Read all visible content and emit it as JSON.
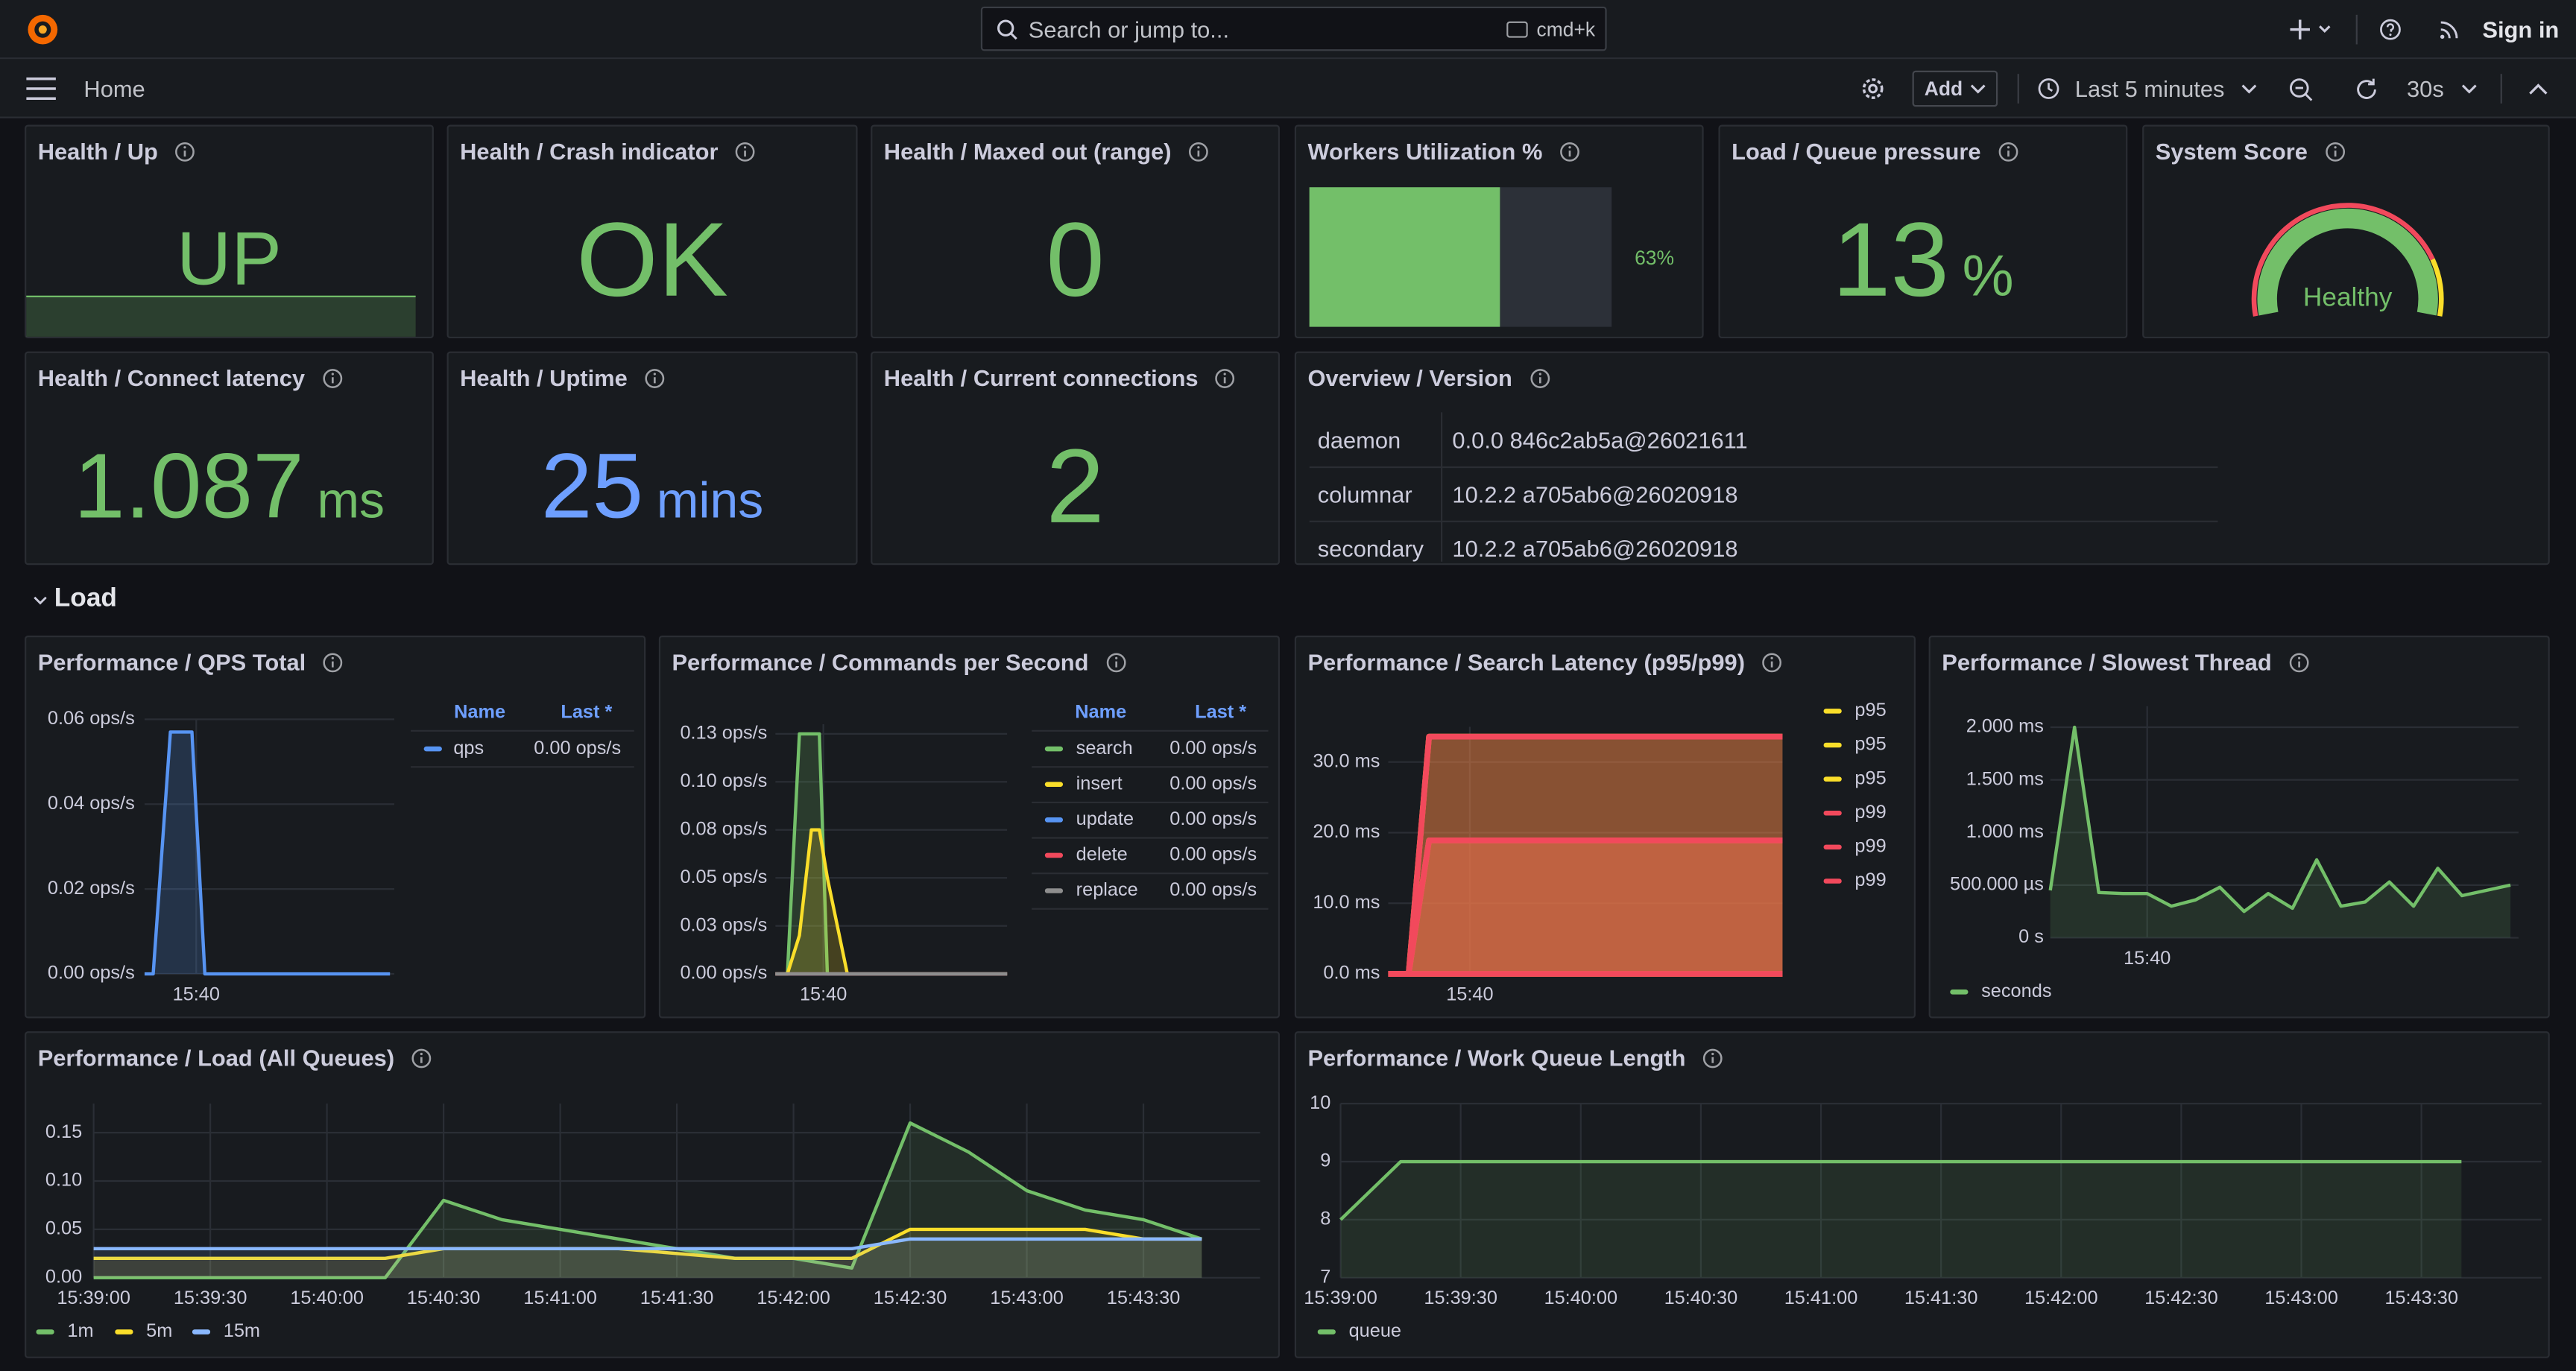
{
  "topbar": {
    "search_placeholder": "Search or jump to...",
    "shortcut": "cmd+k",
    "sign_in": "Sign in"
  },
  "toolbar": {
    "breadcrumb": "Home",
    "add": "Add",
    "time_range": "Last 5 minutes",
    "refresh_interval": "30s"
  },
  "stat_panels": [
    {
      "title": "Health / Up",
      "kind": "stat",
      "value": "UP",
      "color": "#73bf69"
    },
    {
      "title": "Health / Crash indicator",
      "kind": "stat",
      "value": "OK",
      "color": "#73bf69"
    },
    {
      "title": "Health / Maxed out (range)",
      "kind": "stat",
      "value": 0,
      "color": "#73bf69"
    },
    {
      "title": "Workers Utilization %",
      "kind": "bargauge",
      "value": 63,
      "value_label": "63%",
      "max": 100,
      "color": "#73bf69"
    },
    {
      "title": "Load / Queue pressure",
      "kind": "stat",
      "value": 13,
      "unit": "%",
      "color": "#73bf69"
    },
    {
      "title": "System Score",
      "kind": "gauge",
      "value": "Healthy",
      "color": "#73bf69"
    },
    {
      "title": "Health / Connect latency",
      "kind": "stat",
      "value": 1.087,
      "unit": "ms",
      "color": "#73bf69"
    },
    {
      "title": "Health / Uptime",
      "kind": "stat",
      "value": 25,
      "unit": "mins",
      "color": "#6e9fff"
    },
    {
      "title": "Health / Current connections",
      "kind": "stat",
      "value": 2,
      "color": "#73bf69"
    }
  ],
  "version_table": {
    "title": "Overview / Version",
    "rows": [
      [
        "daemon",
        "0.0.0 846c2ab5a@26021611"
      ],
      [
        "columnar",
        "10.2.2 a705ab6@26020918"
      ],
      [
        "secondary",
        "10.2.2 a705ab6@26020918"
      ]
    ]
  },
  "row_title": "Load",
  "chart_data": [
    {
      "type": "line",
      "title": "Performance / QPS Total",
      "grid": true,
      "fill_opacity": 0.2,
      "xlim": [
        "15:39:00",
        "15:43:50"
      ],
      "xticks": [
        "15:40"
      ],
      "ylim": [
        0,
        0.06
      ],
      "yticks": [
        {
          "value": 0,
          "label": "0.00 ops/s"
        },
        {
          "value": 0.02,
          "label": "0.02 ops/s"
        },
        {
          "value": 0.04,
          "label": "0.04 ops/s"
        },
        {
          "value": 0.06,
          "label": "0.06 ops/s"
        }
      ],
      "x": [
        "15:39:00",
        "15:39:10",
        "15:39:30",
        "15:39:55",
        "15:40:10",
        "15:43:45"
      ],
      "legend": {
        "mode": "table",
        "columns": [
          "Name",
          "Last *"
        ]
      },
      "series": [
        {
          "name": "qps",
          "color": "#5794f2",
          "last": "0.00 ops/s",
          "values": [
            0,
            0,
            0.057,
            0.057,
            0,
            0
          ]
        }
      ]
    },
    {
      "type": "line",
      "title": "Performance / Commands per Second",
      "grid": true,
      "fill_opacity": 0.2,
      "xlim": [
        "15:39:00",
        "15:43:50"
      ],
      "xticks": [
        "15:40"
      ],
      "ylim": [
        0,
        0.13
      ],
      "yticks": [
        {
          "value": 0,
          "label": "0.00 ops/s"
        },
        {
          "value": 0.025,
          "label": "0.03 ops/s"
        },
        {
          "value": 0.05,
          "label": "0.05 ops/s"
        },
        {
          "value": 0.075,
          "label": "0.08 ops/s"
        },
        {
          "value": 0.1,
          "label": "0.10 ops/s"
        },
        {
          "value": 0.125,
          "label": "0.13 ops/s"
        }
      ],
      "x": [
        "15:39:00",
        "15:39:15",
        "15:39:30",
        "15:39:45",
        "15:39:55",
        "15:40:05",
        "15:40:30",
        "15:43:50"
      ],
      "legend": {
        "mode": "table",
        "columns": [
          "Name",
          "Last *"
        ]
      },
      "series": [
        {
          "name": "search",
          "color": "#73bf69",
          "last": "0.00 ops/s",
          "values": [
            0,
            0,
            0.125,
            0.125,
            0.125,
            0,
            0,
            0
          ]
        },
        {
          "name": "insert",
          "color": "#fade2a",
          "last": "0.00 ops/s",
          "values": [
            0,
            0,
            0.02,
            0.075,
            0.075,
            0.05,
            0,
            0
          ]
        },
        {
          "name": "update",
          "color": "#5794f2",
          "last": "0.00 ops/s",
          "values": [
            0,
            0,
            0,
            0,
            0,
            0,
            0,
            0
          ]
        },
        {
          "name": "delete",
          "color": "#f2495c",
          "last": "0.00 ops/s",
          "values": [
            0,
            0,
            0,
            0,
            0,
            0,
            0,
            0
          ]
        },
        {
          "name": "replace",
          "color": "#8e8e8e",
          "last": "0.00 ops/s",
          "values": [
            0,
            0,
            0,
            0,
            0,
            0,
            0,
            0
          ]
        }
      ]
    },
    {
      "type": "line",
      "title": "Performance / Search Latency (p95/p99)",
      "grid": true,
      "fill_opacity": 0.3,
      "xlim": [
        "15:39:00",
        "15:43:50"
      ],
      "xticks": [
        "15:40"
      ],
      "ylim": [
        0,
        35
      ],
      "yticks": [
        {
          "value": 0,
          "label": "0.0 ms"
        },
        {
          "value": 10,
          "label": "10.0 ms"
        },
        {
          "value": 20,
          "label": "20.0 ms"
        },
        {
          "value": 30,
          "label": "30.0 ms"
        }
      ],
      "x": [
        "15:39:00",
        "15:39:15",
        "15:39:30",
        "15:43:50"
      ],
      "legend": {
        "mode": "list"
      },
      "series": [
        {
          "name": "p95",
          "color": "#fade2a",
          "values": [
            0,
            0,
            33.6,
            33.6
          ]
        },
        {
          "name": "p95",
          "color": "#fade2a",
          "values": [
            0,
            0,
            18.9,
            18.9
          ]
        },
        {
          "name": "p95",
          "color": "#fade2a",
          "values": [
            0,
            0,
            0,
            0
          ]
        },
        {
          "name": "p99",
          "color": "#f2495c",
          "values": [
            0,
            0,
            33.6,
            33.6
          ]
        },
        {
          "name": "p99",
          "color": "#f2495c",
          "values": [
            0,
            0,
            18.9,
            18.9
          ]
        },
        {
          "name": "p99",
          "color": "#f2495c",
          "values": [
            0,
            0,
            0,
            0
          ]
        }
      ]
    },
    {
      "type": "line",
      "title": "Performance / Slowest Thread",
      "grid": true,
      "fill_opacity": 0.15,
      "xlim": [
        "15:39:00",
        "15:43:50"
      ],
      "xticks": [
        "15:40"
      ],
      "ylim": [
        0,
        0.0022
      ],
      "yticks": [
        {
          "value": 0,
          "label": "0 s"
        },
        {
          "value": 0.0005,
          "label": "500.000 µs"
        },
        {
          "value": 0.001,
          "label": "1.000 ms"
        },
        {
          "value": 0.0015,
          "label": "1.500 ms"
        },
        {
          "value": 0.002,
          "label": "2.000 ms"
        }
      ],
      "x": [
        "15:39:00",
        "15:39:15",
        "15:39:30",
        "15:39:45",
        "15:40:00",
        "15:40:15",
        "15:40:30",
        "15:40:45",
        "15:41:00",
        "15:41:15",
        "15:41:30",
        "15:41:45",
        "15:42:00",
        "15:42:15",
        "15:42:30",
        "15:42:45",
        "15:43:00",
        "15:43:15",
        "15:43:30",
        "15:43:45"
      ],
      "legend": {
        "mode": "list"
      },
      "series": [
        {
          "name": "seconds",
          "color": "#73bf69",
          "values": [
            0.00045,
            0.002,
            0.00043,
            0.00042,
            0.00042,
            0.0003,
            0.00036,
            0.00048,
            0.00025,
            0.00042,
            0.00028,
            0.00074,
            0.0003,
            0.00034,
            0.00053,
            0.0003,
            0.00066,
            0.0004,
            0.00045,
            0.0005
          ]
        }
      ]
    },
    {
      "type": "line",
      "title": "Performance / Load (All Queues)",
      "grid": true,
      "fill_opacity": 0.12,
      "xlim": [
        "15:39:00",
        "15:44:00"
      ],
      "xticks": [
        "15:39:00",
        "15:39:30",
        "15:40:00",
        "15:40:30",
        "15:41:00",
        "15:41:30",
        "15:42:00",
        "15:42:30",
        "15:43:00",
        "15:43:30"
      ],
      "ylim": [
        0,
        0.18
      ],
      "yticks": [
        {
          "value": 0,
          "label": "0.00"
        },
        0.05,
        {
          "value": 0.1,
          "label": "0.10"
        },
        0.15
      ],
      "x": [
        "15:39:00",
        "15:39:15",
        "15:39:30",
        "15:39:45",
        "15:40:00",
        "15:40:15",
        "15:40:30",
        "15:40:45",
        "15:41:00",
        "15:41:15",
        "15:41:30",
        "15:41:45",
        "15:42:00",
        "15:42:15",
        "15:42:30",
        "15:42:45",
        "15:43:00",
        "15:43:15",
        "15:43:30",
        "15:43:45"
      ],
      "legend": {
        "mode": "list"
      },
      "series": [
        {
          "name": "1m",
          "color": "#73bf69",
          "values": [
            0,
            0,
            0,
            0,
            0,
            0,
            0.08,
            0.06,
            0.05,
            0.04,
            0.03,
            0.02,
            0.02,
            0.01,
            0.16,
            0.13,
            0.09,
            0.07,
            0.06,
            0.04
          ]
        },
        {
          "name": "5m",
          "color": "#fade2a",
          "values": [
            0.02,
            0.02,
            0.02,
            0.02,
            0.02,
            0.02,
            0.03,
            0.03,
            0.03,
            0.03,
            0.025,
            0.02,
            0.02,
            0.02,
            0.05,
            0.05,
            0.05,
            0.05,
            0.04,
            0.04
          ]
        },
        {
          "name": "15m",
          "color": "#8ab8ff",
          "values": [
            0.03,
            0.03,
            0.03,
            0.03,
            0.03,
            0.03,
            0.03,
            0.03,
            0.03,
            0.03,
            0.03,
            0.03,
            0.03,
            0.03,
            0.04,
            0.04,
            0.04,
            0.04,
            0.04,
            0.04
          ]
        }
      ]
    },
    {
      "type": "line",
      "title": "Performance / Work Queue Length",
      "grid": true,
      "fill_opacity": 0.12,
      "xlim": [
        "15:39:00",
        "15:44:00"
      ],
      "xticks": [
        "15:39:00",
        "15:39:30",
        "15:40:00",
        "15:40:30",
        "15:41:00",
        "15:41:30",
        "15:42:00",
        "15:42:30",
        "15:43:00",
        "15:43:30"
      ],
      "ylim": [
        7,
        10
      ],
      "yticks": [
        7,
        8,
        9,
        10
      ],
      "x": [
        "15:39:00",
        "15:39:15",
        "15:43:40"
      ],
      "legend": {
        "mode": "list"
      },
      "series": [
        {
          "name": "queue",
          "color": "#73bf69",
          "values": [
            8,
            9,
            9
          ]
        }
      ]
    }
  ]
}
